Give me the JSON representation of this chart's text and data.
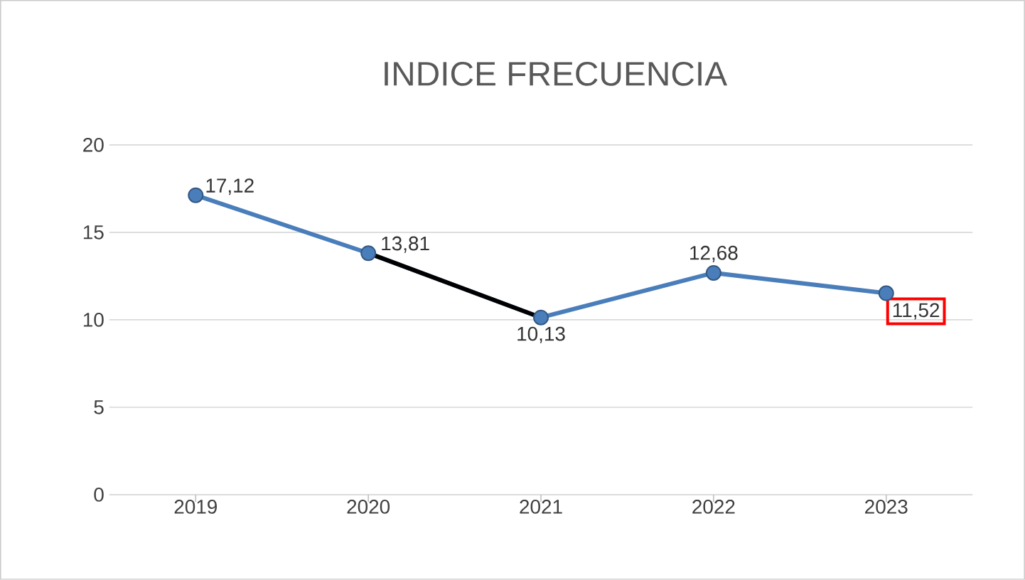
{
  "chart_data": {
    "type": "line",
    "title": "INDICE FRECUENCIA",
    "categories": [
      "2019",
      "2020",
      "2021",
      "2022",
      "2023"
    ],
    "series": [
      {
        "color": "#4a7ebb",
        "values": [
          17.12,
          13.81,
          10.13,
          12.68,
          11.52
        ],
        "value_labels": [
          "17,12",
          "13,81",
          "10,13",
          "12,68",
          "11,52"
        ],
        "marker": "circle"
      },
      {
        "color": "#000000",
        "values": [
          null,
          13.81,
          10.13,
          null,
          null
        ],
        "marker": "none"
      }
    ],
    "ylim": [
      0,
      20
    ],
    "yticks": [
      0,
      5,
      10,
      15,
      20
    ],
    "grid": "y"
  }
}
